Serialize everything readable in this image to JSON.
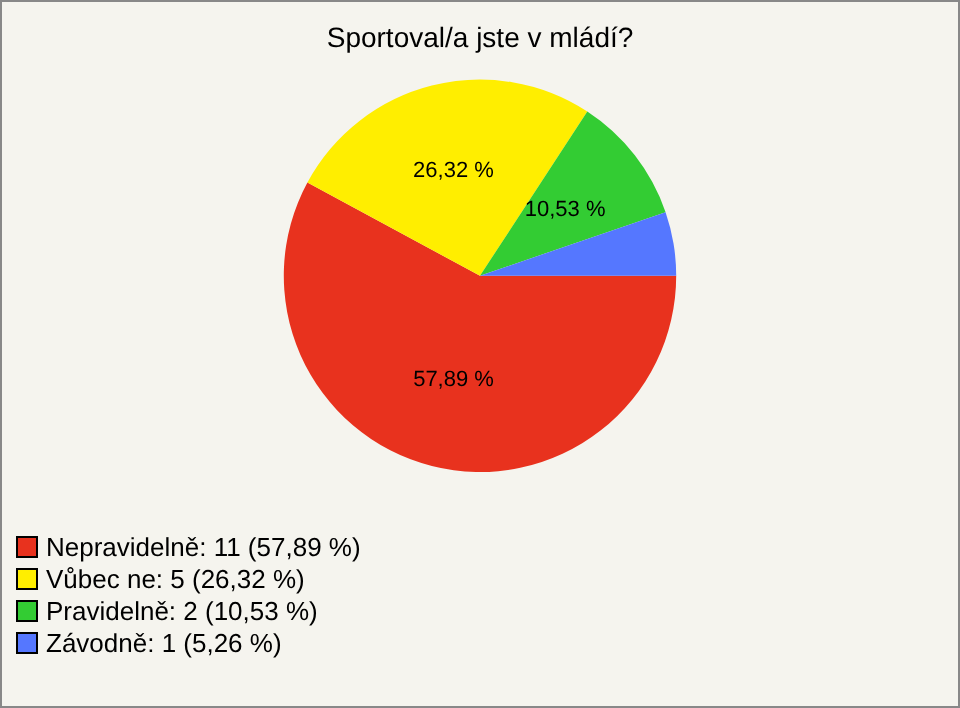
{
  "chart_data": {
    "type": "pie",
    "title": "Sportoval/a jste v mládí?",
    "categories": [
      "Nepravidelně: 11 (57,89 %)",
      "Vůbec ne: 5 (26,32 %)",
      "Pravidelně: 2 (10,53 %)",
      "Závodně: 1 (5,26 %)"
    ],
    "values": [
      57.89,
      26.32,
      10.53,
      5.26
    ],
    "colors": [
      "#e8321e",
      "#ffee00",
      "#33cc33",
      "#5577ff"
    ],
    "value_labels": [
      "57,89 %",
      "26,32 %",
      "10,53 %",
      null
    ],
    "legend": "bottom left"
  }
}
